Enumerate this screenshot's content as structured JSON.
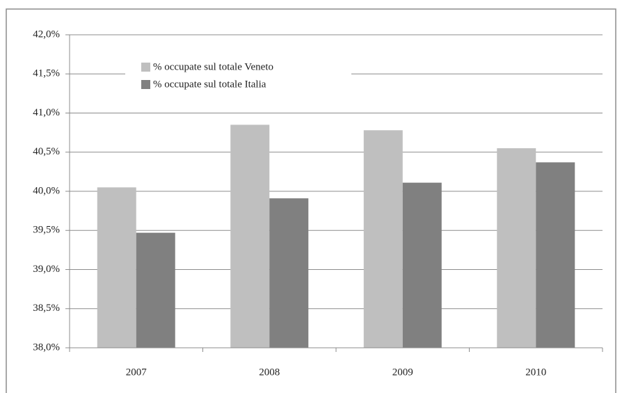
{
  "chart_data": {
    "type": "bar",
    "categories": [
      "2007",
      "2008",
      "2009",
      "2010"
    ],
    "series": [
      {
        "name": "% occupate sul totale Veneto",
        "color": "#bfbfbf",
        "values": [
          40.05,
          40.85,
          40.78,
          40.55
        ]
      },
      {
        "name": "% occupate sul totale Italia",
        "color": "#808080",
        "values": [
          39.47,
          39.91,
          40.11,
          40.37
        ]
      }
    ],
    "ylim": [
      38.0,
      42.0
    ],
    "yticks": [
      {
        "value": 38.0,
        "label": "38,0%"
      },
      {
        "value": 38.5,
        "label": "38,5%"
      },
      {
        "value": 39.0,
        "label": "39,0%"
      },
      {
        "value": 39.5,
        "label": "39,5%"
      },
      {
        "value": 40.0,
        "label": "40,0%"
      },
      {
        "value": 40.5,
        "label": "40,5%"
      },
      {
        "value": 41.0,
        "label": "41,0%"
      },
      {
        "value": 41.5,
        "label": "41,5%"
      },
      {
        "value": 42.0,
        "label": "42,0%"
      }
    ],
    "grid": true,
    "legend": "upper-left"
  }
}
